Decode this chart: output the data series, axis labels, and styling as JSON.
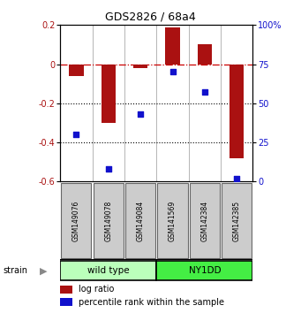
{
  "title": "GDS2826 / 68a4",
  "samples": [
    "GSM149076",
    "GSM149078",
    "GSM149084",
    "GSM141569",
    "GSM142384",
    "GSM142385"
  ],
  "log_ratios": [
    -0.06,
    -0.3,
    -0.02,
    0.19,
    0.1,
    -0.48
  ],
  "percentile_ranks": [
    30,
    8,
    43,
    70,
    57,
    2
  ],
  "bar_color": "#aa1111",
  "dot_color": "#1111cc",
  "ylim_left": [
    -0.6,
    0.2
  ],
  "ylim_right": [
    0,
    100
  ],
  "yticks_left": [
    -0.6,
    -0.4,
    -0.2,
    0.0,
    0.2
  ],
  "yticks_right": [
    0,
    25,
    50,
    75,
    100
  ],
  "groups": [
    {
      "label": "wild type",
      "start": 0,
      "end": 3,
      "color": "#bbffbb"
    },
    {
      "label": "NY1DD",
      "start": 3,
      "end": 6,
      "color": "#44ee44"
    }
  ],
  "strain_label": "strain",
  "legend_bar_label": "log ratio",
  "legend_dot_label": "percentile rank within the sample",
  "hline_y": 0.0,
  "hline_color": "#cc0000",
  "dotted_lines": [
    -0.2,
    -0.4
  ],
  "bar_width": 0.45,
  "fig_width": 3.41,
  "fig_height": 3.54
}
